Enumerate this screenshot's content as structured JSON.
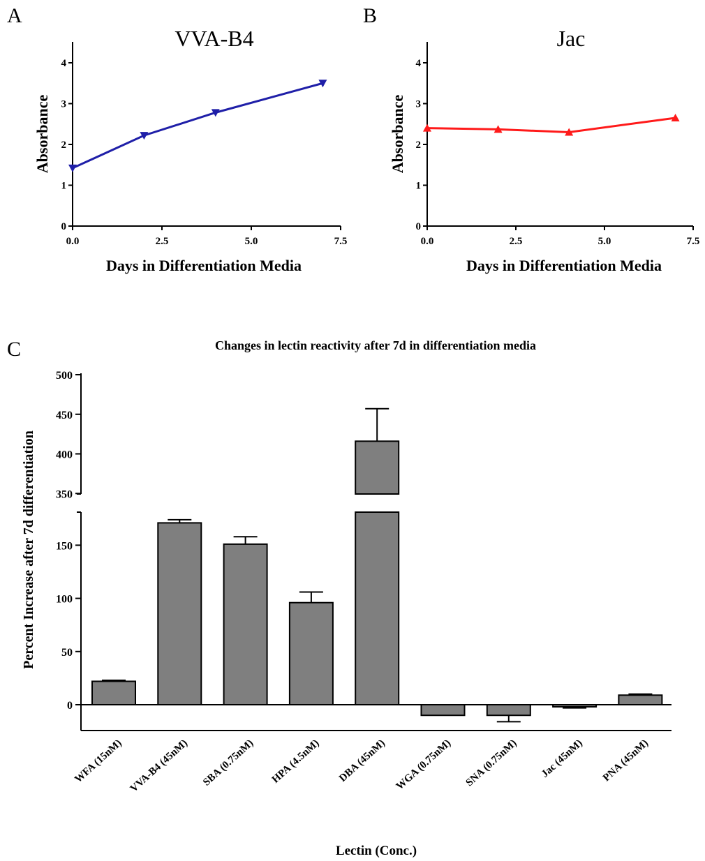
{
  "colors": {
    "panel_a_line": "#1f1fa8",
    "panel_b_line": "#ff1a1a",
    "bar_fill": "#7f7f7f",
    "axis": "#000000"
  },
  "chart_data": [
    {
      "panel": "A",
      "type": "line",
      "title": "VVA-B4",
      "xlabel": "Days in Differentiation Media",
      "ylabel": "Absorbance",
      "x": [
        0,
        2,
        4,
        7
      ],
      "series": [
        {
          "values": [
            1.42,
            2.22,
            2.78,
            3.5
          ],
          "marker": "triangle-down"
        }
      ],
      "xlim": [
        0,
        7.5
      ],
      "ylim": [
        0,
        4
      ],
      "xticks": [
        "0.0",
        "2.5",
        "5.0",
        "7.5"
      ],
      "yticks": [
        "0",
        "1",
        "2",
        "3",
        "4"
      ],
      "grid": false
    },
    {
      "panel": "B",
      "type": "line",
      "title": "Jac",
      "xlabel": "Days in Differentiation Media",
      "ylabel": "Absorbance",
      "x": [
        0,
        2,
        4,
        7
      ],
      "series": [
        {
          "values": [
            2.4,
            2.37,
            2.3,
            2.65
          ],
          "marker": "triangle-up"
        }
      ],
      "xlim": [
        0,
        7.5
      ],
      "ylim": [
        0,
        4
      ],
      "xticks": [
        "0.0",
        "2.5",
        "5.0",
        "7.5"
      ],
      "yticks": [
        "0",
        "1",
        "2",
        "3",
        "4"
      ],
      "grid": false
    },
    {
      "panel": "C",
      "type": "bar",
      "title": "Changes in lectin reactivity after 7d in differentiation media",
      "xlabel": "Lectin (Conc.)",
      "ylabel": "Percent Increase after  7d differentiation",
      "categories": [
        "WFA (15nM)",
        "VVA-B4 (45nM)",
        "SBA (0.75nM)",
        "HPA (4.5nM)",
        "DBA (45nM)",
        "WGA (0.75nM)",
        "SNA (0.75nM)",
        "Jac (45nM)",
        "PNA (45nM)"
      ],
      "values": [
        22,
        171,
        151,
        96,
        416,
        -10,
        -10,
        -2,
        9
      ],
      "errors": [
        1,
        3,
        7,
        10,
        41,
        0,
        6,
        1,
        1
      ],
      "ylim": [
        -20,
        500
      ],
      "axis_break": [
        180,
        345
      ],
      "yticks": [
        "0",
        "50",
        "100",
        "150",
        "350",
        "400",
        "450",
        "500"
      ],
      "grid": false
    }
  ],
  "panel_letters": [
    "A",
    "B",
    "C"
  ]
}
